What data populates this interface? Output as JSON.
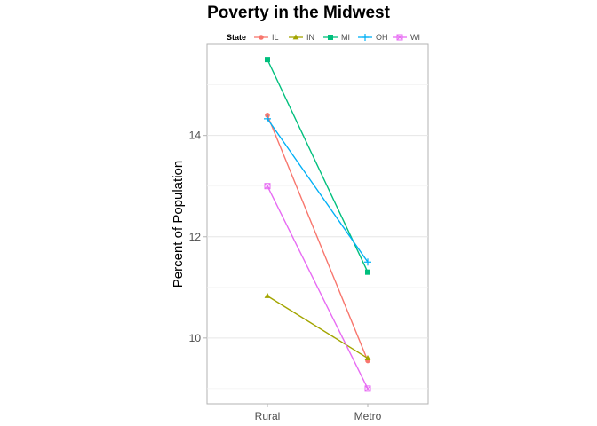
{
  "chart_data": {
    "type": "line",
    "title": "Poverty in the Midwest",
    "xlabel": "",
    "ylabel": "Percent of Population",
    "categories": [
      "Rural",
      "Metro"
    ],
    "y_ticks": [
      10,
      12,
      14
    ],
    "ylim": [
      8.7,
      15.8
    ],
    "grid": true,
    "legend_title": "State",
    "legend_position": "top",
    "series": [
      {
        "name": "IL",
        "values": [
          14.4,
          9.55
        ],
        "color": "#F8766D",
        "marker": "circle"
      },
      {
        "name": "IN",
        "values": [
          10.83,
          9.6
        ],
        "color": "#A3A500",
        "marker": "triangle"
      },
      {
        "name": "MI",
        "values": [
          15.5,
          11.3
        ],
        "color": "#00BF7D",
        "marker": "square"
      },
      {
        "name": "OH",
        "values": [
          14.33,
          11.5
        ],
        "color": "#00B0F6",
        "marker": "plus"
      },
      {
        "name": "WI",
        "values": [
          13.0,
          9.0
        ],
        "color": "#E76BF3",
        "marker": "square-cross"
      }
    ]
  }
}
